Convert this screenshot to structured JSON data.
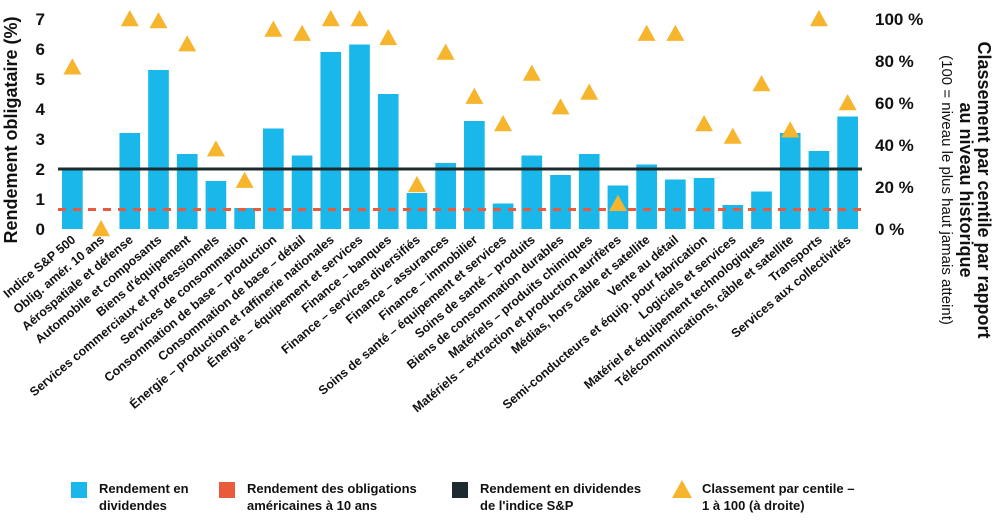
{
  "chart_data": {
    "type": "bar",
    "categories": [
      "Indice S&P 500",
      "Oblig. amér. 10 ans",
      "Aérospatiale et défense",
      "Automobile et composants",
      "Biens d'équipement",
      "Services commerciaux et professionnels",
      "Services de consommation",
      "Consommation de base – production",
      "Consommation de base – détail",
      "Énergie – production et raffinerie nationales",
      "Énergie – équipement et services",
      "Finance – banques",
      "Finance – services diversifiés",
      "Finance – assurances",
      "Finance – immobilier",
      "Soins de santé – équipement et services",
      "Soins de santé – produits",
      "Biens de consommation durables",
      "Matériels – produits chimiques",
      "Matériels – extraction et production aurifères",
      "Médias, hors câble et satellite",
      "Vente au détail",
      "Semi-conducteurs et équip. pour fabrication",
      "Logiciels et services",
      "Matériel et équipement technologiques",
      "Télécommunications, câble et satellite",
      "Transports",
      "Services aux collectivités"
    ],
    "series": [
      {
        "name": "Rendement en dividendes",
        "type": "bar",
        "axis": "left",
        "values": [
          2.0,
          0.0,
          3.2,
          5.3,
          2.5,
          1.6,
          0.7,
          3.35,
          2.45,
          5.9,
          6.15,
          4.5,
          1.2,
          2.2,
          3.6,
          0.85,
          2.45,
          1.8,
          2.5,
          1.45,
          2.15,
          1.65,
          1.7,
          0.8,
          1.25,
          3.2,
          2.6,
          3.75
        ]
      },
      {
        "name": "Rendement des obligations américaines à 10 ans",
        "type": "line",
        "axis": "left",
        "value": 0.65
      },
      {
        "name": "Rendement en dividendes de l'indice S&P",
        "type": "line",
        "axis": "left",
        "value": 2.0
      },
      {
        "name": "Classement par centile – 1 à 100 (à droite)",
        "type": "scatter",
        "axis": "right",
        "values": [
          77,
          0,
          100,
          99,
          88,
          38,
          23,
          95,
          93,
          100,
          100,
          91,
          21,
          84,
          63,
          50,
          74,
          58,
          65,
          12,
          93,
          93,
          50,
          44,
          69,
          47,
          100,
          60
        ]
      }
    ],
    "ylabel": "Rendement obligataire (%)",
    "ylim": [
      0,
      7
    ],
    "yticks": [
      "0",
      "1",
      "2",
      "3",
      "4",
      "5",
      "6",
      "7"
    ],
    "y2label": "Classement par centile par rapport au niveau historique",
    "y2sublabel": "(100 = niveau le plus haut jamais atteint)",
    "y2lim": [
      0,
      100
    ],
    "y2ticks": [
      "0 %",
      "20 %",
      "40 %",
      "60 %",
      "80 %",
      "100 %"
    ],
    "grid": false,
    "legend_position": "bottom",
    "colors": {
      "bars": "#1ab8ea",
      "treasury_line": "#ea5a3c",
      "sp_line": "#1e2b2e",
      "triangles": "#f6b52c"
    }
  },
  "legend": {
    "dividends": "Rendement en\ndividendes",
    "treasury": "Rendement des obligations\naméricaines à 10 ans",
    "sp": "Rendement en dividendes\nde l'indice S&P",
    "percentile": "Classement par centile –\n1 à 100 (à droite)"
  }
}
